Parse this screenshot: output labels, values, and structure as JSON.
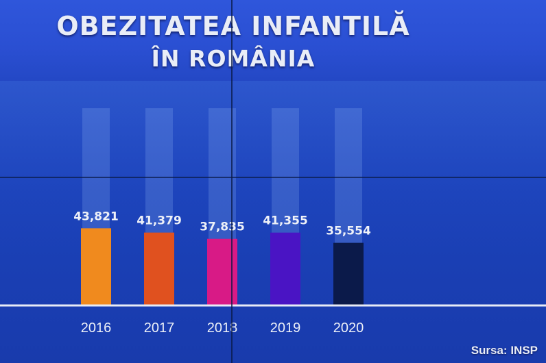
{
  "header": {
    "title": "OBEZITATEA INFANTILĂ",
    "subtitle": "ÎN ROMÂNIA"
  },
  "footer": {
    "source": "Sursa: INSP"
  },
  "chart_data": {
    "type": "bar",
    "title": "OBEZITATEA INFANTILĂ ÎN ROMÂNIA",
    "xlabel": "",
    "ylabel": "",
    "categories": [
      "2016",
      "2017",
      "2018",
      "2019",
      "2020"
    ],
    "values": [
      43821,
      41379,
      37835,
      41355,
      35554
    ],
    "data_labels": [
      "43,821",
      "41,379",
      "37,835",
      "41,355",
      "35,554"
    ],
    "bar_colors": [
      "#f08a1e",
      "#e0511f",
      "#d81a86",
      "#4a14c4",
      "#0b1a4a"
    ],
    "ylim": [
      0,
      140000
    ],
    "grid": false,
    "legend": "none"
  }
}
